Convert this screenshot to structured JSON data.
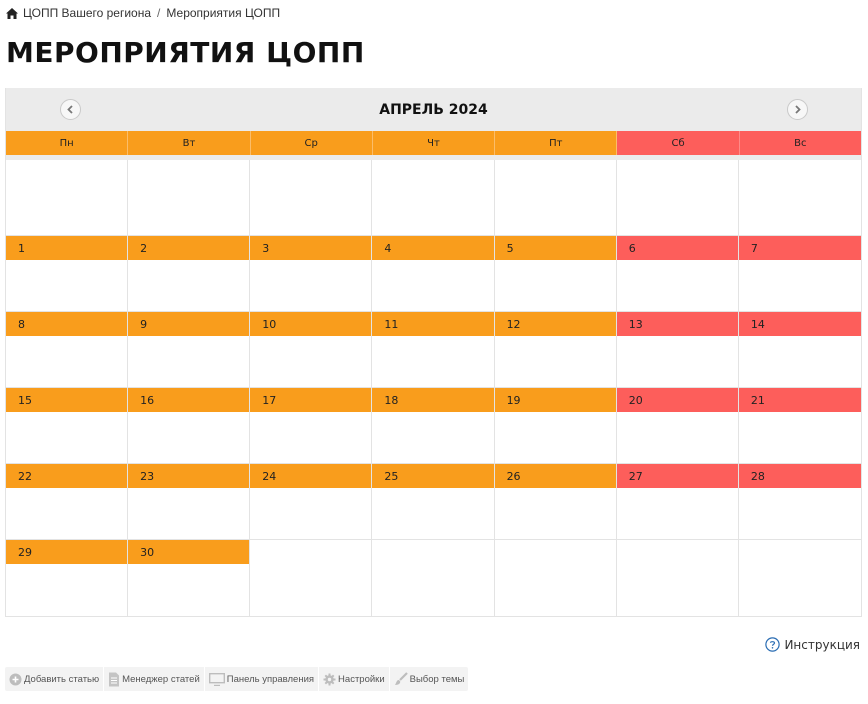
{
  "breadcrumb": {
    "home_icon": "home-icon",
    "items": [
      "ЦОПП Вашего региона",
      "Мероприятия ЦОПП"
    ],
    "separator": "/"
  },
  "page_title": "МЕРОПРИЯТИЯ ЦОПП",
  "calendar": {
    "month_title": "АПРЕЛЬ 2024",
    "prev_icon": "chevron-left-icon",
    "next_icon": "chevron-right-icon",
    "weekdays": [
      "Пн",
      "Вт",
      "Ср",
      "Чт",
      "Пт",
      "Сб",
      "Вс"
    ],
    "days": [
      "1",
      "2",
      "3",
      "4",
      "5",
      "6",
      "7",
      "8",
      "9",
      "10",
      "11",
      "12",
      "13",
      "14",
      "15",
      "16",
      "17",
      "18",
      "19",
      "20",
      "21",
      "22",
      "23",
      "24",
      "25",
      "26",
      "27",
      "28",
      "29",
      "30"
    ],
    "colors": {
      "weekday": "#f99d1c",
      "weekend": "#fd5e5b",
      "header_bg": "#ebebeb"
    }
  },
  "instruction": {
    "label": "Инструкция",
    "icon": "question-circle-icon"
  },
  "admin_bar": {
    "items": [
      {
        "label": "Добавить статью",
        "icon": "plus-circle-icon"
      },
      {
        "label": "Менеджер статей",
        "icon": "document-icon"
      },
      {
        "label": "Панель управления",
        "icon": "monitor-icon"
      },
      {
        "label": "Настройки",
        "icon": "gear-icon"
      },
      {
        "label": "Выбор темы",
        "icon": "brush-icon"
      }
    ]
  }
}
